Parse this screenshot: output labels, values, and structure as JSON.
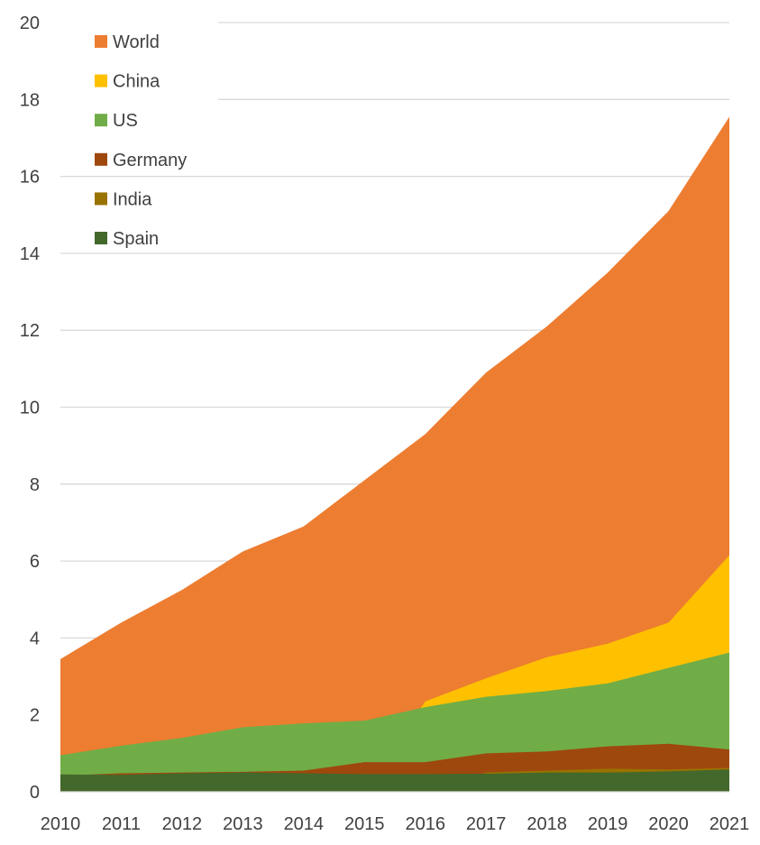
{
  "chart_data": {
    "type": "area",
    "stacked": false,
    "x": [
      2010,
      2011,
      2012,
      2013,
      2014,
      2015,
      2016,
      2017,
      2018,
      2019,
      2020,
      2021
    ],
    "ylim": [
      0,
      20
    ],
    "yticks": [
      0,
      2,
      4,
      6,
      8,
      10,
      12,
      14,
      16,
      18,
      20
    ],
    "grid": "horizontal",
    "legend_position": "top-left",
    "series": [
      {
        "name": "World",
        "color": "#ED7D31",
        "values": [
          3.45,
          4.4,
          5.25,
          6.25,
          6.9,
          8.1,
          9.3,
          10.9,
          12.1,
          13.5,
          15.1,
          17.55
        ]
      },
      {
        "name": "China",
        "color": "#FFC000",
        "values": [
          0.0,
          0.0,
          0.0,
          0.0,
          0.0,
          0.0,
          2.35,
          2.95,
          3.5,
          3.85,
          4.4,
          6.15
        ]
      },
      {
        "name": "US",
        "color": "#70AD47",
        "values": [
          0.95,
          1.2,
          1.4,
          1.68,
          1.78,
          1.85,
          2.2,
          2.47,
          2.62,
          2.82,
          3.22,
          3.62
        ]
      },
      {
        "name": "Germany",
        "color": "#9E480E",
        "values": [
          0.42,
          0.48,
          0.5,
          0.52,
          0.55,
          0.77,
          0.77,
          1.0,
          1.05,
          1.18,
          1.25,
          1.1
        ]
      },
      {
        "name": "India",
        "color": "#997300",
        "values": [
          0.0,
          0.0,
          0.0,
          0.0,
          0.0,
          0.0,
          0.0,
          0.5,
          0.55,
          0.6,
          0.58,
          0.62
        ]
      },
      {
        "name": "Spain",
        "color": "#43682B",
        "values": [
          0.45,
          0.44,
          0.48,
          0.5,
          0.48,
          0.46,
          0.46,
          0.47,
          0.5,
          0.5,
          0.53,
          0.58
        ]
      }
    ]
  }
}
